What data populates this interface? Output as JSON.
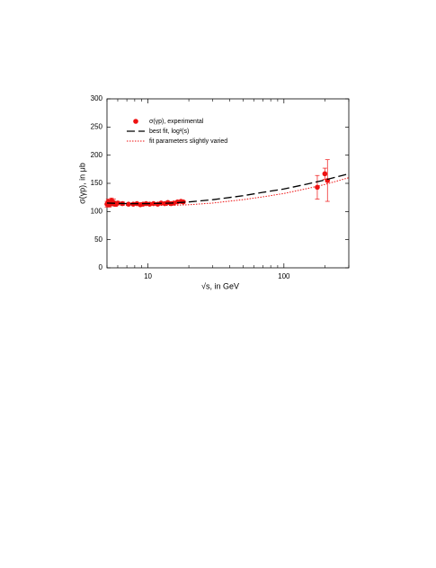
{
  "chart_data": {
    "type": "scatter",
    "xlabel": "√s, in GeV",
    "ylabel": "σ(γp), in μb",
    "xscale": "log",
    "xlim": [
      5,
      300
    ],
    "ylim": [
      0,
      300
    ],
    "xticks": [
      10,
      100
    ],
    "xminorticks": [
      5,
      6,
      7,
      8,
      9,
      20,
      30,
      40,
      50,
      60,
      70,
      80,
      90,
      200,
      300
    ],
    "yticks": [
      0,
      50,
      100,
      150,
      200,
      250,
      300
    ],
    "series": [
      {
        "name": "σ(γp), experimental",
        "type": "scatter",
        "color": "#ee1111",
        "x": [
          5.0,
          5.1,
          5.2,
          5.3,
          5.4,
          5.5,
          5.6,
          5.8,
          6.0,
          6.5,
          7.2,
          7.8,
          8.3,
          8.8,
          9.2,
          9.7,
          10.3,
          11,
          11.8,
          12.5,
          13.3,
          14,
          14.8,
          15.5,
          16.5,
          17.5,
          18.2,
          176,
          200,
          209
        ],
        "values": [
          113,
          117,
          112,
          115,
          119,
          114,
          116,
          113,
          115,
          114,
          113,
          113,
          114,
          112,
          113,
          114,
          113,
          114,
          113,
          115,
          114,
          116,
          114,
          115,
          117,
          118,
          117,
          143,
          167,
          155
        ],
        "errors": [
          5,
          5,
          4,
          5,
          5,
          4,
          6,
          4,
          3,
          3,
          2,
          2,
          2,
          2,
          2,
          2,
          2,
          2,
          2,
          2,
          2,
          2,
          2,
          2,
          2,
          2,
          2,
          21,
          10,
          37
        ]
      },
      {
        "name": "best fit, log²(s)",
        "type": "line",
        "style": "dashed",
        "color": "#000000",
        "x": [
          5,
          7,
          10,
          15,
          20,
          30,
          50,
          70,
          100,
          150,
          200,
          300
        ],
        "values": [
          115,
          114,
          114,
          115,
          117,
          121,
          128,
          134,
          140,
          149,
          156,
          167
        ]
      },
      {
        "name": "fit parameters slightly varied",
        "type": "line",
        "style": "dotted",
        "color": "#ee1111",
        "x": [
          5,
          7,
          10,
          15,
          20,
          30,
          50,
          70,
          100,
          150,
          200,
          300
        ],
        "values": [
          112,
          111,
          111,
          111,
          112,
          115,
          121,
          126,
          132,
          141,
          148,
          160
        ]
      }
    ]
  }
}
